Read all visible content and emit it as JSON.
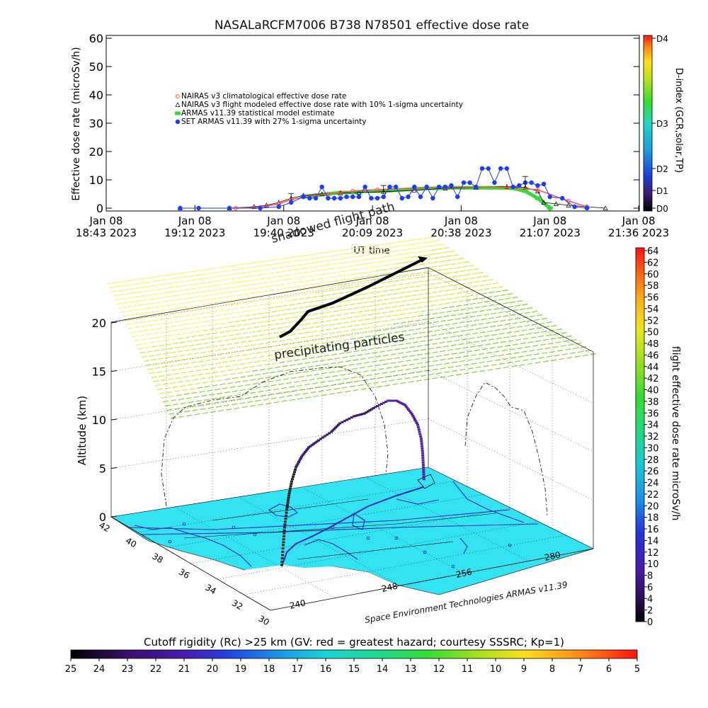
{
  "title": "NASALaRCFM7006   B738 N78501 effective dose rate",
  "top_chart": {
    "ylabel": "Effective dose rate (microSv/h)",
    "xlabel": "UT time",
    "yticks": [
      "0",
      "10",
      "20",
      "30",
      "40",
      "50",
      "60"
    ],
    "xticks": [
      {
        "l1": "Jan 08",
        "l2": "18:43 2023"
      },
      {
        "l1": "Jan 08",
        "l2": "19:12 2023"
      },
      {
        "l1": "Jan 08",
        "l2": "19:40 2023"
      },
      {
        "l1": "Jan 08",
        "l2": "20:09 2023"
      },
      {
        "l1": "Jan 08",
        "l2": "20:38 2023"
      },
      {
        "l1": "Jan 08",
        "l2": "21:07 2023"
      },
      {
        "l1": "Jan 08",
        "l2": "21:36 2023"
      }
    ],
    "legend": [
      "NAIRAS v3 climatological effective dose rate",
      "NAIRAS v3 flight modeled effective dose rate with 10% 1-sigma uncertainty",
      "ARMAS v11.39 statistical model estimate",
      "SET ARMAS v11.39 with 27% 1-sigma uncertainty"
    ],
    "dindex_label": "D-index (GCR,solar,TP)",
    "dindex_ticks": [
      "D4",
      "D3",
      "D2",
      "D1",
      "D0"
    ],
    "overlay_text": "shadowed flight path"
  },
  "chart_data": [
    {
      "type": "line",
      "title": "NASALaRCFM7006   B738 N78501 effective dose rate",
      "xlabel": "UT time",
      "ylabel": "Effective dose rate (microSv/h)",
      "x_unit": "minutes after 18:43 UT, Jan 08 2023",
      "xlim": [
        0,
        173
      ],
      "ylim": [
        0,
        60
      ],
      "series": [
        {
          "name": "NAIRAS v3 climatological effective dose rate",
          "color": "#ff5050",
          "x": [
            42,
            50,
            56,
            60,
            64,
            68,
            72,
            76,
            80,
            84,
            88,
            92,
            100,
            110,
            120,
            130,
            140,
            150,
            156
          ],
          "y": [
            0,
            0.3,
            1.5,
            3,
            4,
            4.5,
            5,
            5.5,
            6,
            6.3,
            6.5,
            6.8,
            7,
            7.3,
            7.4,
            7.3,
            6.5,
            2.5,
            0.5
          ]
        },
        {
          "name": "NAIRAS v3 flight modeled effective dose rate with 10% 1-sigma uncertainty",
          "color": "#000000",
          "x": [
            24,
            40,
            48,
            52,
            56,
            60,
            64,
            70,
            76,
            82,
            90,
            100,
            110,
            120,
            130,
            136,
            140,
            142,
            146,
            150,
            156,
            162
          ],
          "y": [
            0,
            0,
            0.5,
            1,
            2,
            3.5,
            4.5,
            5,
            5.3,
            5.5,
            5.8,
            6.3,
            7,
            7.3,
            7.6,
            7.3,
            6,
            2,
            1.5,
            1,
            0.5,
            0
          ]
        },
        {
          "name": "ARMAS v11.39 statistical model estimate",
          "color": "#33dd33",
          "x": [
            64,
            68,
            72,
            76,
            80,
            84,
            88,
            92,
            96,
            100,
            104,
            108,
            112,
            116,
            120,
            124,
            128,
            132,
            136,
            140,
            144
          ],
          "y": [
            4,
            4.5,
            5,
            5.5,
            5.5,
            6,
            6,
            6.2,
            6.5,
            6.8,
            7,
            7,
            7.2,
            7.2,
            7.2,
            7.2,
            7.2,
            7,
            6,
            3.5,
            0
          ]
        },
        {
          "name": "SET ARMAS v11.39 with 27% 1-sigma uncertainty",
          "color": "#1a3cff",
          "x": [
            24,
            30,
            40,
            50,
            56,
            60,
            64,
            66,
            68,
            70,
            72,
            74,
            76,
            78,
            80,
            82,
            84,
            86,
            88,
            90,
            92,
            94,
            96,
            98,
            100,
            102,
            104,
            106,
            108,
            110,
            112,
            114,
            116,
            118,
            120,
            122,
            124,
            126,
            128,
            130,
            132,
            134,
            136,
            138,
            140,
            142,
            144,
            148,
            152,
            156
          ],
          "y": [
            0,
            0,
            0,
            0,
            0.5,
            2,
            4,
            3.5,
            3.5,
            7.5,
            3.5,
            3.5,
            3.5,
            4,
            4,
            4,
            7.5,
            3.5,
            3.5,
            4,
            7.5,
            7.5,
            3.5,
            4,
            7.5,
            4,
            7.5,
            3.5,
            7.5,
            7.5,
            8,
            4,
            9,
            9,
            7.5,
            14,
            14,
            9,
            14,
            14,
            7.5,
            8,
            9,
            9,
            8,
            8.5,
            4,
            3.5,
            0.5,
            0
          ]
        }
      ]
    },
    {
      "type": "scatter",
      "title": "",
      "xlabel": "",
      "ylabel": "Altitude (km)",
      "zlim": [
        0,
        20
      ],
      "zticks": [
        "0",
        "5",
        "10",
        "15",
        "20"
      ],
      "lat_ticks": [
        "42",
        "40",
        "38",
        "36",
        "34",
        "32",
        "30"
      ],
      "lon_ticks": [
        "240",
        "248",
        "256",
        "280"
      ],
      "series": [
        {
          "name": "flight effective dose rate microSv/h",
          "points": [
            {
              "lon": 248,
              "lat": 32,
              "alt_km": 0.3
            },
            {
              "lon": 249,
              "lat": 33,
              "alt_km": 1.5
            },
            {
              "lon": 250,
              "lat": 34,
              "alt_km": 4
            },
            {
              "lon": 252,
              "lat": 35,
              "alt_km": 7
            },
            {
              "lon": 256,
              "lat": 36,
              "alt_km": 10
            },
            {
              "lon": 262,
              "lat": 37.5,
              "alt_km": 11
            },
            {
              "lon": 268,
              "lat": 39,
              "alt_km": 11.5
            },
            {
              "lon": 272,
              "lat": 40,
              "alt_km": 11
            },
            {
              "lon": 276,
              "lat": 40.5,
              "alt_km": 8
            },
            {
              "lon": 278,
              "lat": 41,
              "alt_km": 4
            },
            {
              "lon": 279,
              "lat": 41.5,
              "alt_km": 0.8
            }
          ]
        }
      ],
      "annotations": [
        "precipitating particles",
        "shadowed flight path"
      ],
      "credit": "Space Environment Technologies ARMAS v11.39"
    }
  ],
  "dose_colorbar": {
    "label": "flight effective dose rate microSv/h",
    "ticks": [
      "64",
      "62",
      "60",
      "58",
      "56",
      "54",
      "52",
      "50",
      "48",
      "46",
      "44",
      "42",
      "40",
      "38",
      "36",
      "34",
      "32",
      "30",
      "28",
      "26",
      "24",
      "22",
      "20",
      "18",
      "16",
      "14",
      "12",
      "10",
      "8",
      "6",
      "4",
      "2",
      "0"
    ]
  },
  "cutoff_colorbar": {
    "label": "Cutoff rigidity (Rc) >25 km (GV: red = greatest hazard; courtesy SSSRC; Kp=1)",
    "ticks": [
      "25",
      "24",
      "23",
      "22",
      "21",
      "20",
      "19",
      "18",
      "17",
      "16",
      "15",
      "14",
      "13",
      "12",
      "11",
      "10",
      "9",
      "8",
      "7",
      "6",
      "5"
    ]
  },
  "colors": {
    "map": "#33e3f2",
    "coast": "#2b2bb5",
    "precip_top": "#fff066",
    "precip_bottom": "#74cc33"
  }
}
